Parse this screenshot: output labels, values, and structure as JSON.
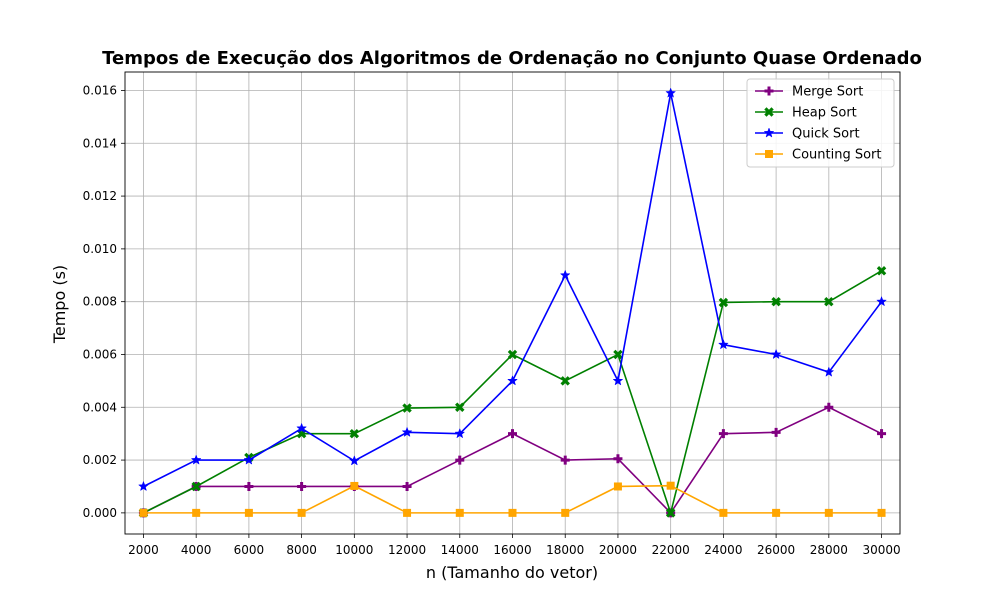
{
  "chart_data": {
    "type": "line",
    "title": "Tempos de Execução dos Algoritmos de Ordenação no Conjunto Quase Ordenado",
    "xlabel": "n (Tamanho do vetor)",
    "ylabel": "Tempo (s)",
    "x": [
      2000,
      4000,
      6000,
      8000,
      10000,
      12000,
      14000,
      16000,
      18000,
      20000,
      22000,
      24000,
      26000,
      28000,
      30000
    ],
    "x_tick_labels": [
      "2000",
      "4000",
      "6000",
      "8000",
      "10000",
      "12000",
      "14000",
      "16000",
      "18000",
      "20000",
      "22000",
      "24000",
      "26000",
      "28000",
      "30000"
    ],
    "ylim": [
      -0.0008,
      0.0167
    ],
    "y_ticks": [
      0.0,
      0.002,
      0.004,
      0.006,
      0.008,
      0.01,
      0.012,
      0.014,
      0.016
    ],
    "y_tick_labels": [
      "0.000",
      "0.002",
      "0.004",
      "0.006",
      "0.008",
      "0.010",
      "0.012",
      "0.014",
      "0.016"
    ],
    "grid": true,
    "legend_position": "top-right",
    "series": [
      {
        "name": "Merge Sort",
        "color": "#800080",
        "marker": "plus",
        "values": [
          0.0,
          0.001,
          0.001,
          0.001,
          0.001,
          0.001,
          0.002,
          0.003,
          0.002,
          0.00205,
          0.0,
          0.003,
          0.00305,
          0.004,
          0.003
        ]
      },
      {
        "name": "Heap Sort",
        "color": "#008000",
        "marker": "x",
        "values": [
          0.0,
          0.001,
          0.0021,
          0.003,
          0.003,
          0.00397,
          0.004,
          0.006,
          0.005,
          0.006,
          0.0,
          0.00797,
          0.008,
          0.008,
          0.00917
        ]
      },
      {
        "name": "Quick Sort",
        "color": "#0000ff",
        "marker": "star",
        "values": [
          0.001,
          0.002,
          0.002,
          0.0032,
          0.00197,
          0.00305,
          0.003,
          0.005,
          0.009,
          0.005,
          0.0159,
          0.00637,
          0.006,
          0.00533,
          0.008
        ]
      },
      {
        "name": "Counting Sort",
        "color": "#ffa500",
        "marker": "square",
        "values": [
          0.0,
          0.0,
          0.0,
          0.0,
          0.00102,
          0.0,
          0.0,
          0.0,
          0.0,
          0.001,
          0.00103,
          0.0,
          0.0,
          0.0,
          0.0
        ]
      }
    ]
  }
}
